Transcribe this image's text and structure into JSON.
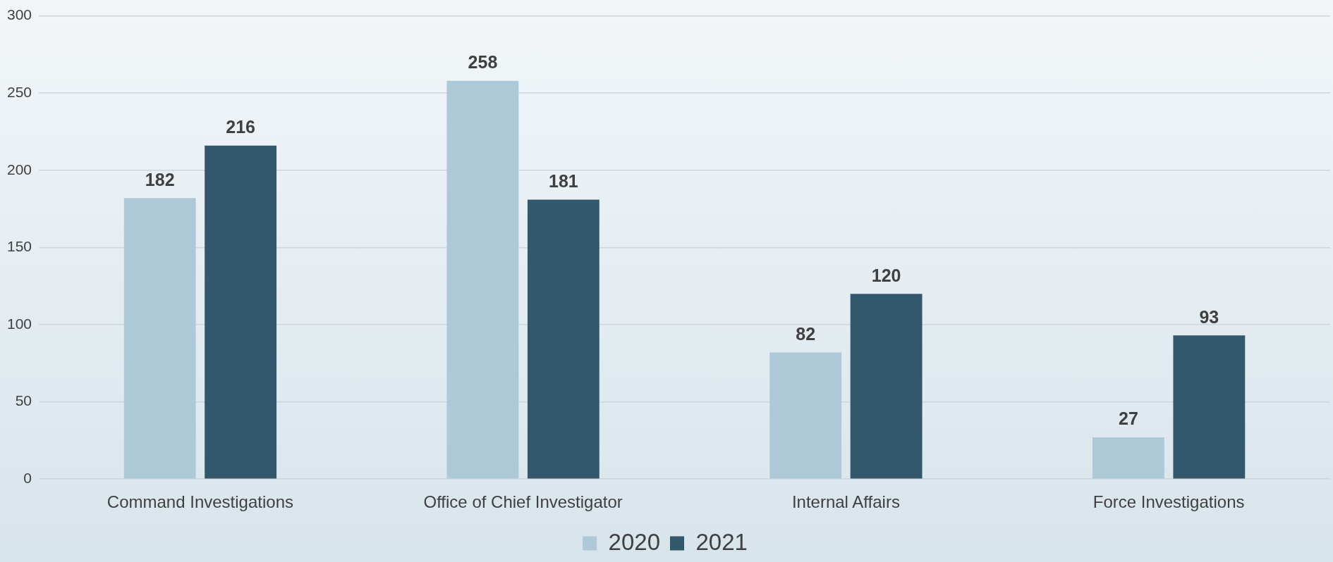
{
  "chart_data": {
    "type": "bar",
    "categories": [
      "Command Investigations",
      "Office of Chief Investigator",
      "Internal Affairs",
      "Force Investigations"
    ],
    "series": [
      {
        "name": "2020",
        "color": "#adc9d7",
        "values": [
          182,
          258,
          82,
          27
        ]
      },
      {
        "name": "2021",
        "color": "#33586b",
        "values": [
          216,
          181,
          120,
          93
        ]
      }
    ],
    "ylim": [
      0,
      300
    ],
    "yticks": [
      0,
      50,
      100,
      150,
      200,
      250,
      300
    ],
    "grid": "y",
    "legend": "bottom",
    "data_labels": true
  }
}
